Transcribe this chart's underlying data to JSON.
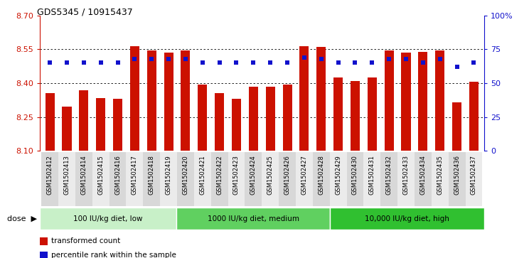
{
  "title": "GDS5345 / 10915437",
  "samples": [
    "GSM1502412",
    "GSM1502413",
    "GSM1502414",
    "GSM1502415",
    "GSM1502416",
    "GSM1502417",
    "GSM1502418",
    "GSM1502419",
    "GSM1502420",
    "GSM1502421",
    "GSM1502422",
    "GSM1502423",
    "GSM1502424",
    "GSM1502425",
    "GSM1502426",
    "GSM1502427",
    "GSM1502428",
    "GSM1502429",
    "GSM1502430",
    "GSM1502431",
    "GSM1502432",
    "GSM1502433",
    "GSM1502434",
    "GSM1502435",
    "GSM1502436",
    "GSM1502437"
  ],
  "red_values": [
    8.355,
    8.295,
    8.37,
    8.335,
    8.33,
    8.565,
    8.545,
    8.535,
    8.545,
    8.395,
    8.355,
    8.33,
    8.385,
    8.385,
    8.395,
    8.565,
    8.56,
    8.425,
    8.41,
    8.425,
    8.545,
    8.535,
    8.54,
    8.545,
    8.315,
    8.405
  ],
  "blue_values": [
    65,
    65,
    65,
    65,
    65,
    68,
    68,
    68,
    68,
    65,
    65,
    65,
    65,
    65,
    65,
    69,
    68,
    65,
    65,
    65,
    68,
    68,
    65,
    68,
    62,
    65
  ],
  "groups": [
    {
      "label": "100 IU/kg diet, low",
      "start": 0,
      "end": 8,
      "color": "#C8F0C8"
    },
    {
      "label": "1000 IU/kg diet, medium",
      "start": 8,
      "end": 17,
      "color": "#60D060"
    },
    {
      "label": "10,000 IU/kg diet, high",
      "start": 17,
      "end": 26,
      "color": "#30C030"
    }
  ],
  "ylim_left": [
    8.1,
    8.7
  ],
  "ylim_right": [
    0,
    100
  ],
  "yticks_left": [
    8.1,
    8.25,
    8.4,
    8.55,
    8.7
  ],
  "yticks_right": [
    0,
    25,
    50,
    75,
    100
  ],
  "grid_values": [
    8.25,
    8.4,
    8.55
  ],
  "bar_color": "#CC1100",
  "dot_color": "#1111CC",
  "bar_width": 0.55,
  "legend_items": [
    {
      "label": "transformed count",
      "color": "#CC1100"
    },
    {
      "label": "percentile rank within the sample",
      "color": "#1111CC"
    }
  ],
  "dose_label": "dose",
  "background_color": "#FFFFFF",
  "plot_bg_color": "#FFFFFF",
  "tick_bg_even": "#D8D8D8",
  "tick_bg_odd": "#EBEBEB"
}
